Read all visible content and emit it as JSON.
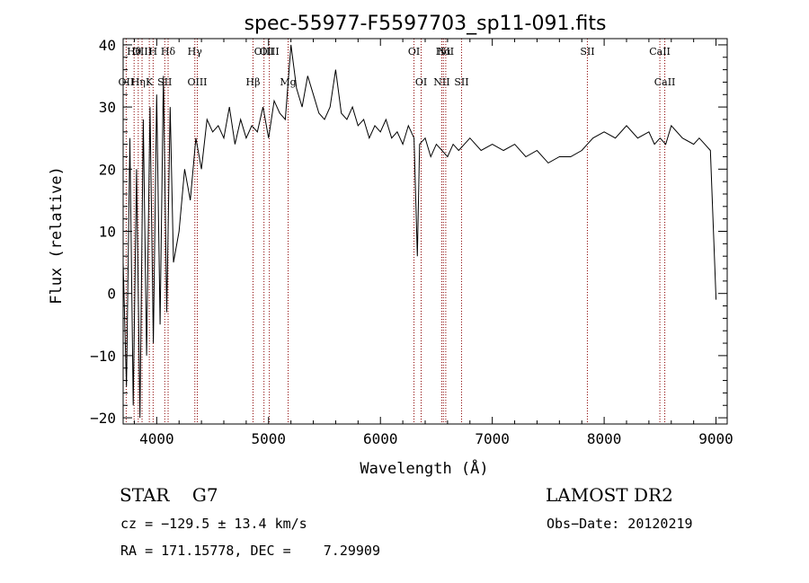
{
  "chart_data": {
    "type": "line",
    "title": "spec-55977-F5597703_sp11-091.fits",
    "xlabel": "Wavelength (Å)",
    "ylabel": "Flux (relative)",
    "xlim": [
      3700,
      9100
    ],
    "ylim": [
      -21,
      41
    ],
    "xticks": [
      4000,
      5000,
      6000,
      7000,
      8000,
      9000
    ],
    "yticks": [
      -20,
      -10,
      0,
      10,
      20,
      30,
      40
    ],
    "x_tick_labels": [
      "4000",
      "5000",
      "6000",
      "7000",
      "8000",
      "9000"
    ],
    "y_tick_labels": [
      "−20",
      "−10",
      "0",
      "10",
      "20",
      "30",
      "40"
    ],
    "grid": false,
    "line_color": "#000000",
    "marker_color": "#8b0000",
    "series": [
      {
        "x": [
          3700,
          3730,
          3760,
          3790,
          3820,
          3850,
          3880,
          3910,
          3940,
          3970,
          4000,
          4030,
          4060,
          4090,
          4120,
          4150,
          4200,
          4250,
          4300,
          4350,
          4400,
          4450,
          4500,
          4550,
          4600,
          4650,
          4700,
          4750,
          4800,
          4850,
          4900,
          4950,
          5000,
          5050,
          5100,
          5150,
          5200,
          5250,
          5300,
          5350,
          5400,
          5450,
          5500,
          5550,
          5600,
          5650,
          5700,
          5750,
          5800,
          5850,
          5900,
          5950,
          6000,
          6050,
          6100,
          6150,
          6200,
          6250,
          6300,
          6330,
          6350,
          6400,
          6450,
          6500,
          6550,
          6600,
          6650,
          6700,
          6750,
          6800,
          6900,
          7000,
          7100,
          7200,
          7300,
          7400,
          7500,
          7600,
          7700,
          7800,
          7850,
          7900,
          8000,
          8100,
          8200,
          8300,
          8400,
          8450,
          8500,
          8550,
          8600,
          8700,
          8800,
          8850,
          8900,
          8950,
          9000
        ],
        "y": [
          5,
          -15,
          25,
          -18,
          20,
          -20,
          28,
          -10,
          30,
          -8,
          32,
          -5,
          35,
          -3,
          30,
          5,
          10,
          20,
          15,
          25,
          20,
          28,
          26,
          27,
          25,
          30,
          24,
          28,
          25,
          27,
          26,
          30,
          25,
          31,
          29,
          28,
          40,
          33,
          30,
          35,
          32,
          29,
          28,
          30,
          36,
          29,
          28,
          30,
          27,
          28,
          25,
          27,
          26,
          28,
          25,
          26,
          24,
          27,
          25,
          6,
          24,
          25,
          22,
          24,
          23,
          22,
          24,
          23,
          24,
          25,
          23,
          24,
          23,
          24,
          22,
          23,
          21,
          22,
          22,
          23,
          24,
          25,
          26,
          25,
          27,
          25,
          26,
          24,
          25,
          24,
          27,
          25,
          24,
          25,
          24,
          23,
          -1
        ]
      }
    ],
    "line_markers": [
      {
        "label": "Hθ",
        "x": 3798
      },
      {
        "label": "OII",
        "x": 3727
      },
      {
        "label": "OIII",
        "x": 3869
      },
      {
        "label": "Hη",
        "x": 3835
      },
      {
        "label": "H",
        "x": 3968
      },
      {
        "label": "K",
        "x": 3934
      },
      {
        "label": "Hδ",
        "x": 4102
      },
      {
        "label": "SII",
        "x": 4072
      },
      {
        "label": "Hγ",
        "x": 4341
      },
      {
        "label": "OIII",
        "x": 4363
      },
      {
        "label": "OIII",
        "x": 5007
      },
      {
        "label": "Hβ",
        "x": 4861
      },
      {
        "label": "OIII",
        "x": 4959
      },
      {
        "label": "Mg",
        "x": 5175
      },
      {
        "label": "OI",
        "x": 6300
      },
      {
        "label": "OI",
        "x": 6364
      },
      {
        "label": "Hα",
        "x": 6563
      },
      {
        "label": "SII",
        "x": 6725
      },
      {
        "label": "NII",
        "x": 6584
      },
      {
        "label": "NII",
        "x": 6548
      },
      {
        "label": "SII",
        "x": 7850
      },
      {
        "label": "CaII",
        "x": 8542
      },
      {
        "label": "CaII",
        "x": 8498
      }
    ]
  },
  "info": {
    "class_label": "STAR    G7",
    "survey": "LAMOST DR2",
    "cz": "cz = −129.5 ± 13.4 km/s",
    "obs_date": "Obs−Date: 20120219",
    "radec": "RA = 171.15778, DEC =    7.29909"
  }
}
